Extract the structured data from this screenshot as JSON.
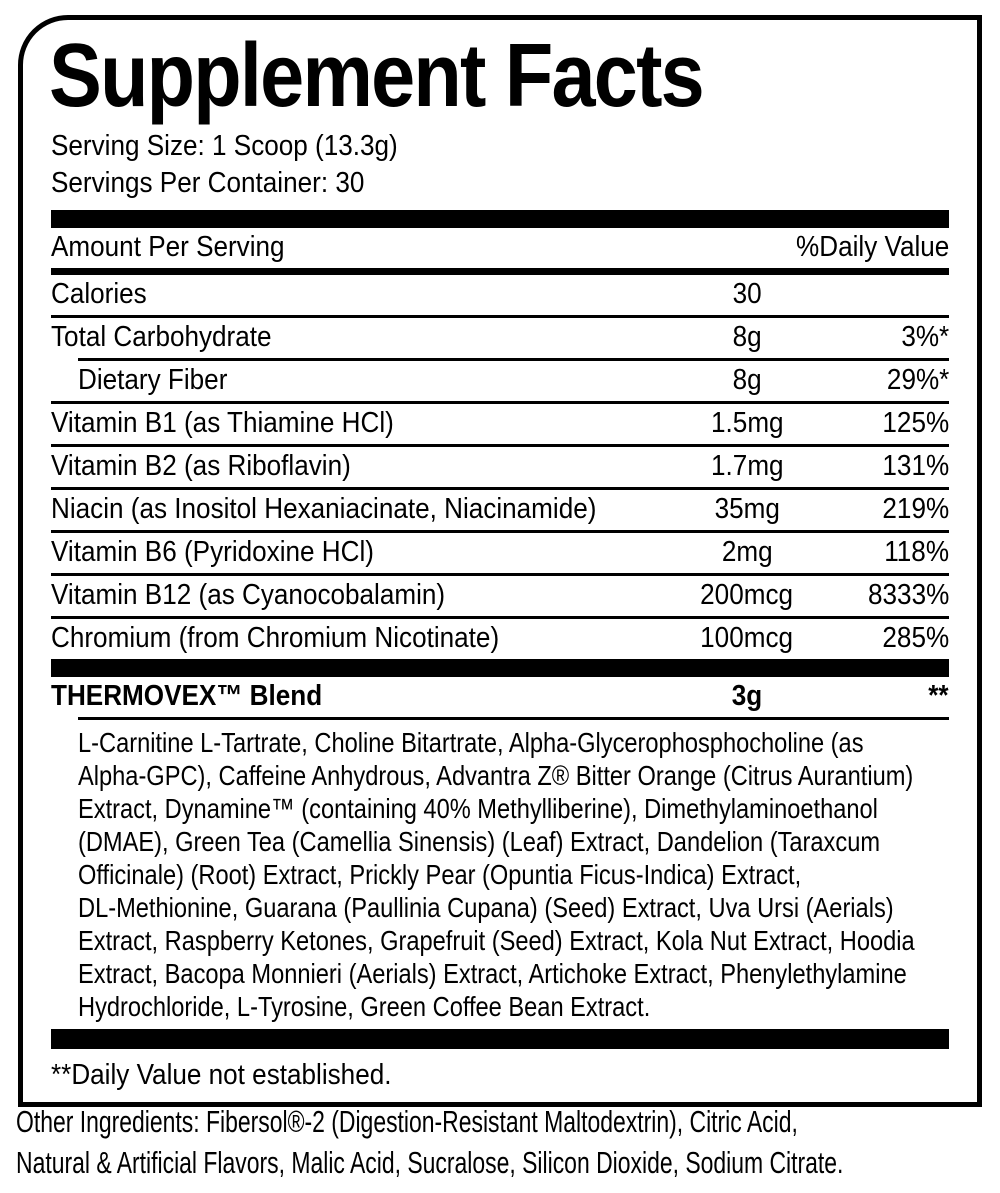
{
  "label": {
    "title": "Supplement Facts",
    "serving_size": "Serving Size: 1 Scoop (13.3g)",
    "servings_per_container": "Servings Per Container: 30",
    "columns": {
      "amount_header": "Amount Per Serving",
      "daily_value_header": "%Daily Value"
    },
    "rows": [
      {
        "name": "Calories",
        "amount": "30",
        "dv": ""
      },
      {
        "name": "Total Carbohydrate",
        "amount": "8g",
        "dv": "3%*"
      },
      {
        "name": "Dietary Fiber",
        "amount": "8g",
        "dv": "29%*",
        "indented": true
      },
      {
        "name": "Vitamin B1 (as Thiamine HCl)",
        "amount": "1.5mg",
        "dv": "125%"
      },
      {
        "name": "Vitamin B2 (as Riboflavin)",
        "amount": "1.7mg",
        "dv": "131%"
      },
      {
        "name": "Niacin (as Inositol Hexaniacinate, Niacinamide)",
        "amount": "35mg",
        "dv": "219%"
      },
      {
        "name": "Vitamin B6 (Pyridoxine HCl)",
        "amount": "2mg",
        "dv": "118%"
      },
      {
        "name": "Vitamin B12 (as Cyanocobalamin)",
        "amount": "200mcg",
        "dv": "8333%"
      },
      {
        "name": "Chromium (from Chromium Nicotinate)",
        "amount": "100mcg",
        "dv": "285%"
      }
    ],
    "blend": {
      "name": "THERMOVEX™ Blend",
      "amount": "3g",
      "dv": "**",
      "ingredients_lines": [
        "L-Carnitine L-Tartrate, Choline Bitartrate, Alpha-Glycerophosphocholine (as",
        "Alpha-GPC), Caffeine Anhydrous, Advantra Z® Bitter Orange (Citrus Aurantium)",
        "Extract, Dynamine™ (containing 40% Methylliberine), Dimethylaminoethanol",
        "(DMAE), Green Tea (Camellia Sinensis) (Leaf) Extract, Dandelion (Taraxcum",
        "Officinale) (Root) Extract, Prickly Pear (Opuntia Ficus-Indica) Extract,",
        "DL-Methionine, Guarana (Paullinia Cupana) (Seed) Extract, Uva Ursi (Aerials)",
        "Extract, Raspberry Ketones, Grapefruit (Seed) Extract, Kola Nut Extract, Hoodia",
        "Extract, Bacopa Monnieri (Aerials) Extract, Artichoke Extract, Phenylethylamine",
        "Hydrochloride, L-Tyrosine, Green Coffee Bean Extract."
      ]
    },
    "footnote": "**Daily Value not established.",
    "other_ingredients_lines": [
      "Other Ingredients: Fibersol®-2 (Digestion-Resistant Maltodextrin), Citric Acid,",
      "Natural & Artificial Flavors, Malic Acid, Sucralose, Silicon Dioxide, Sodium Citrate."
    ],
    "colors": {
      "ink": "#000000",
      "background": "#ffffff"
    }
  }
}
